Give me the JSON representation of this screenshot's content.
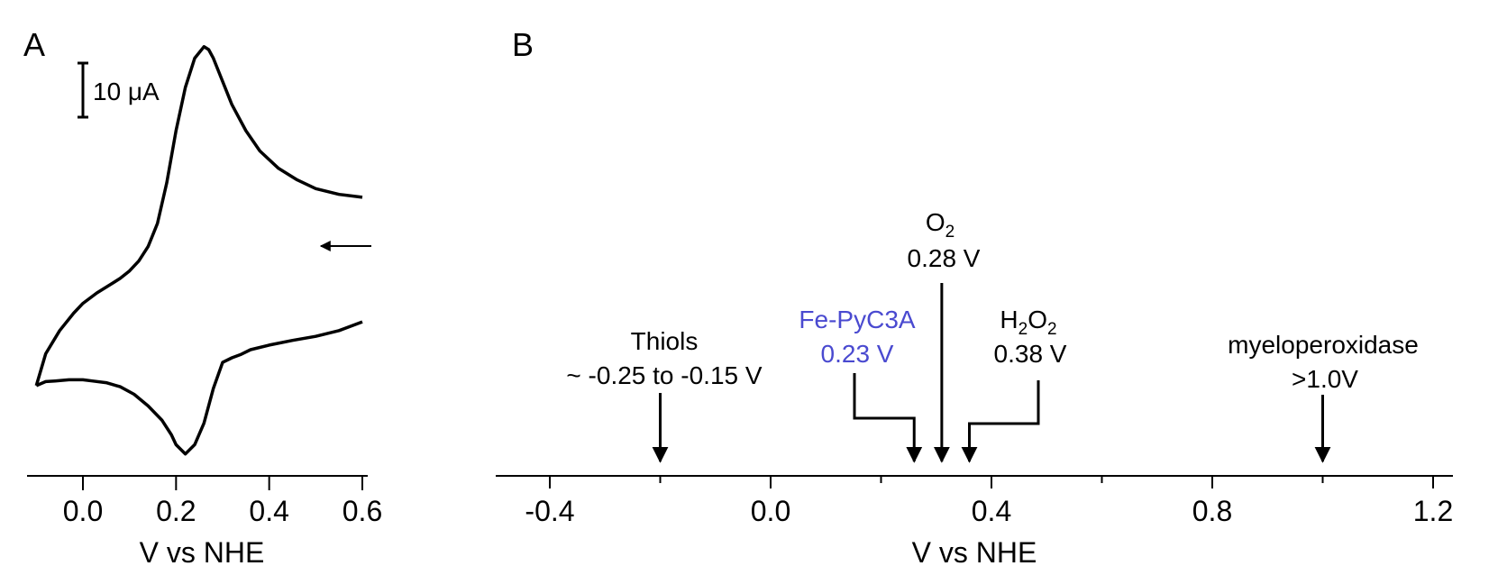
{
  "chart_data": [
    {
      "panel": "A",
      "type": "line",
      "xlabel": "V vs NHE",
      "ylabel": "",
      "xlim": [
        -0.1,
        0.6
      ],
      "xticks": [
        0.0,
        0.2,
        0.4,
        0.6
      ],
      "xtick_labels": [
        "0.0",
        "0.2",
        "0.4",
        "0.6"
      ],
      "scale_bar_label": "10 μA",
      "scale_bar_value_uA": 10,
      "grid": false,
      "ylim_uA": [
        -3,
        73
      ],
      "series": [
        {
          "segment": "forward",
          "x": [
            0.6,
            0.55,
            0.5,
            0.45,
            0.4,
            0.36,
            0.34,
            0.32,
            0.3,
            0.28,
            0.26,
            0.24,
            0.22,
            0.2,
            0.19,
            0.17,
            0.14,
            0.11,
            0.08,
            0.05,
            0.02,
            0.0,
            -0.03,
            -0.06,
            -0.08,
            -0.1
          ],
          "y": [
            23,
            21.5,
            20.5,
            19.8,
            19,
            18.2,
            17.4,
            16.8,
            16,
            11.5,
            5.5,
            1.8,
            0.2,
            1.8,
            3.5,
            6,
            8.5,
            10.5,
            11.8,
            12.5,
            12.8,
            13,
            13,
            12.8,
            12.7,
            12
          ]
        },
        {
          "segment": "reverse",
          "x": [
            -0.1,
            -0.08,
            -0.05,
            -0.02,
            0.0,
            0.03,
            0.06,
            0.08,
            0.1,
            0.12,
            0.14,
            0.16,
            0.18,
            0.2,
            0.22,
            0.24,
            0.26,
            0.27,
            0.28,
            0.3,
            0.32,
            0.35,
            0.38,
            0.42,
            0.46,
            0.5,
            0.55,
            0.6
          ],
          "y": [
            12,
            17.5,
            21.5,
            24.5,
            26.2,
            28,
            29.5,
            30.5,
            31.8,
            33.5,
            36,
            40,
            47,
            56,
            63.5,
            68.5,
            70.5,
            70,
            68.5,
            64.5,
            60.5,
            56,
            52.5,
            49.5,
            47.5,
            46,
            45,
            44.5
          ]
        }
      ],
      "annotations": [
        {
          "type": "arrow",
          "direction": "left",
          "at_x": 0.5,
          "at_y_uA": 21
        }
      ]
    },
    {
      "panel": "B",
      "type": "number-line",
      "xlabel": "V vs NHE",
      "xlim": [
        -0.5,
        1.2
      ],
      "xticks": [
        -0.4,
        0.0,
        0.4,
        0.8,
        1.2
      ],
      "xtick_labels": [
        "-0.4",
        "0.0",
        "0.4",
        "0.8",
        "1.2"
      ],
      "minor_xticks": [
        -0.2,
        0.2,
        0.6,
        1.0
      ],
      "markers": [
        {
          "name": "Thiols",
          "value_label": "~ -0.25 to -0.15 V",
          "x": -0.2,
          "color": "#000000"
        },
        {
          "name": "Fe-PyC3A",
          "value_label": "0.23 V",
          "x": 0.26,
          "color": "#4a4ad0"
        },
        {
          "name": "O",
          "subscript": "2",
          "value_label": "0.28 V",
          "x": 0.31,
          "color": "#000000"
        },
        {
          "name_parts": [
            "H",
            "2",
            "O",
            "2"
          ],
          "value_label": "0.38 V",
          "x": 0.36,
          "color": "#000000"
        },
        {
          "name": "myeloperoxidase",
          "value_label": ">1.0V",
          "x": 1.0,
          "color": "#000000"
        }
      ]
    }
  ],
  "labels": {
    "panel_a": "A",
    "panel_b": "B"
  }
}
